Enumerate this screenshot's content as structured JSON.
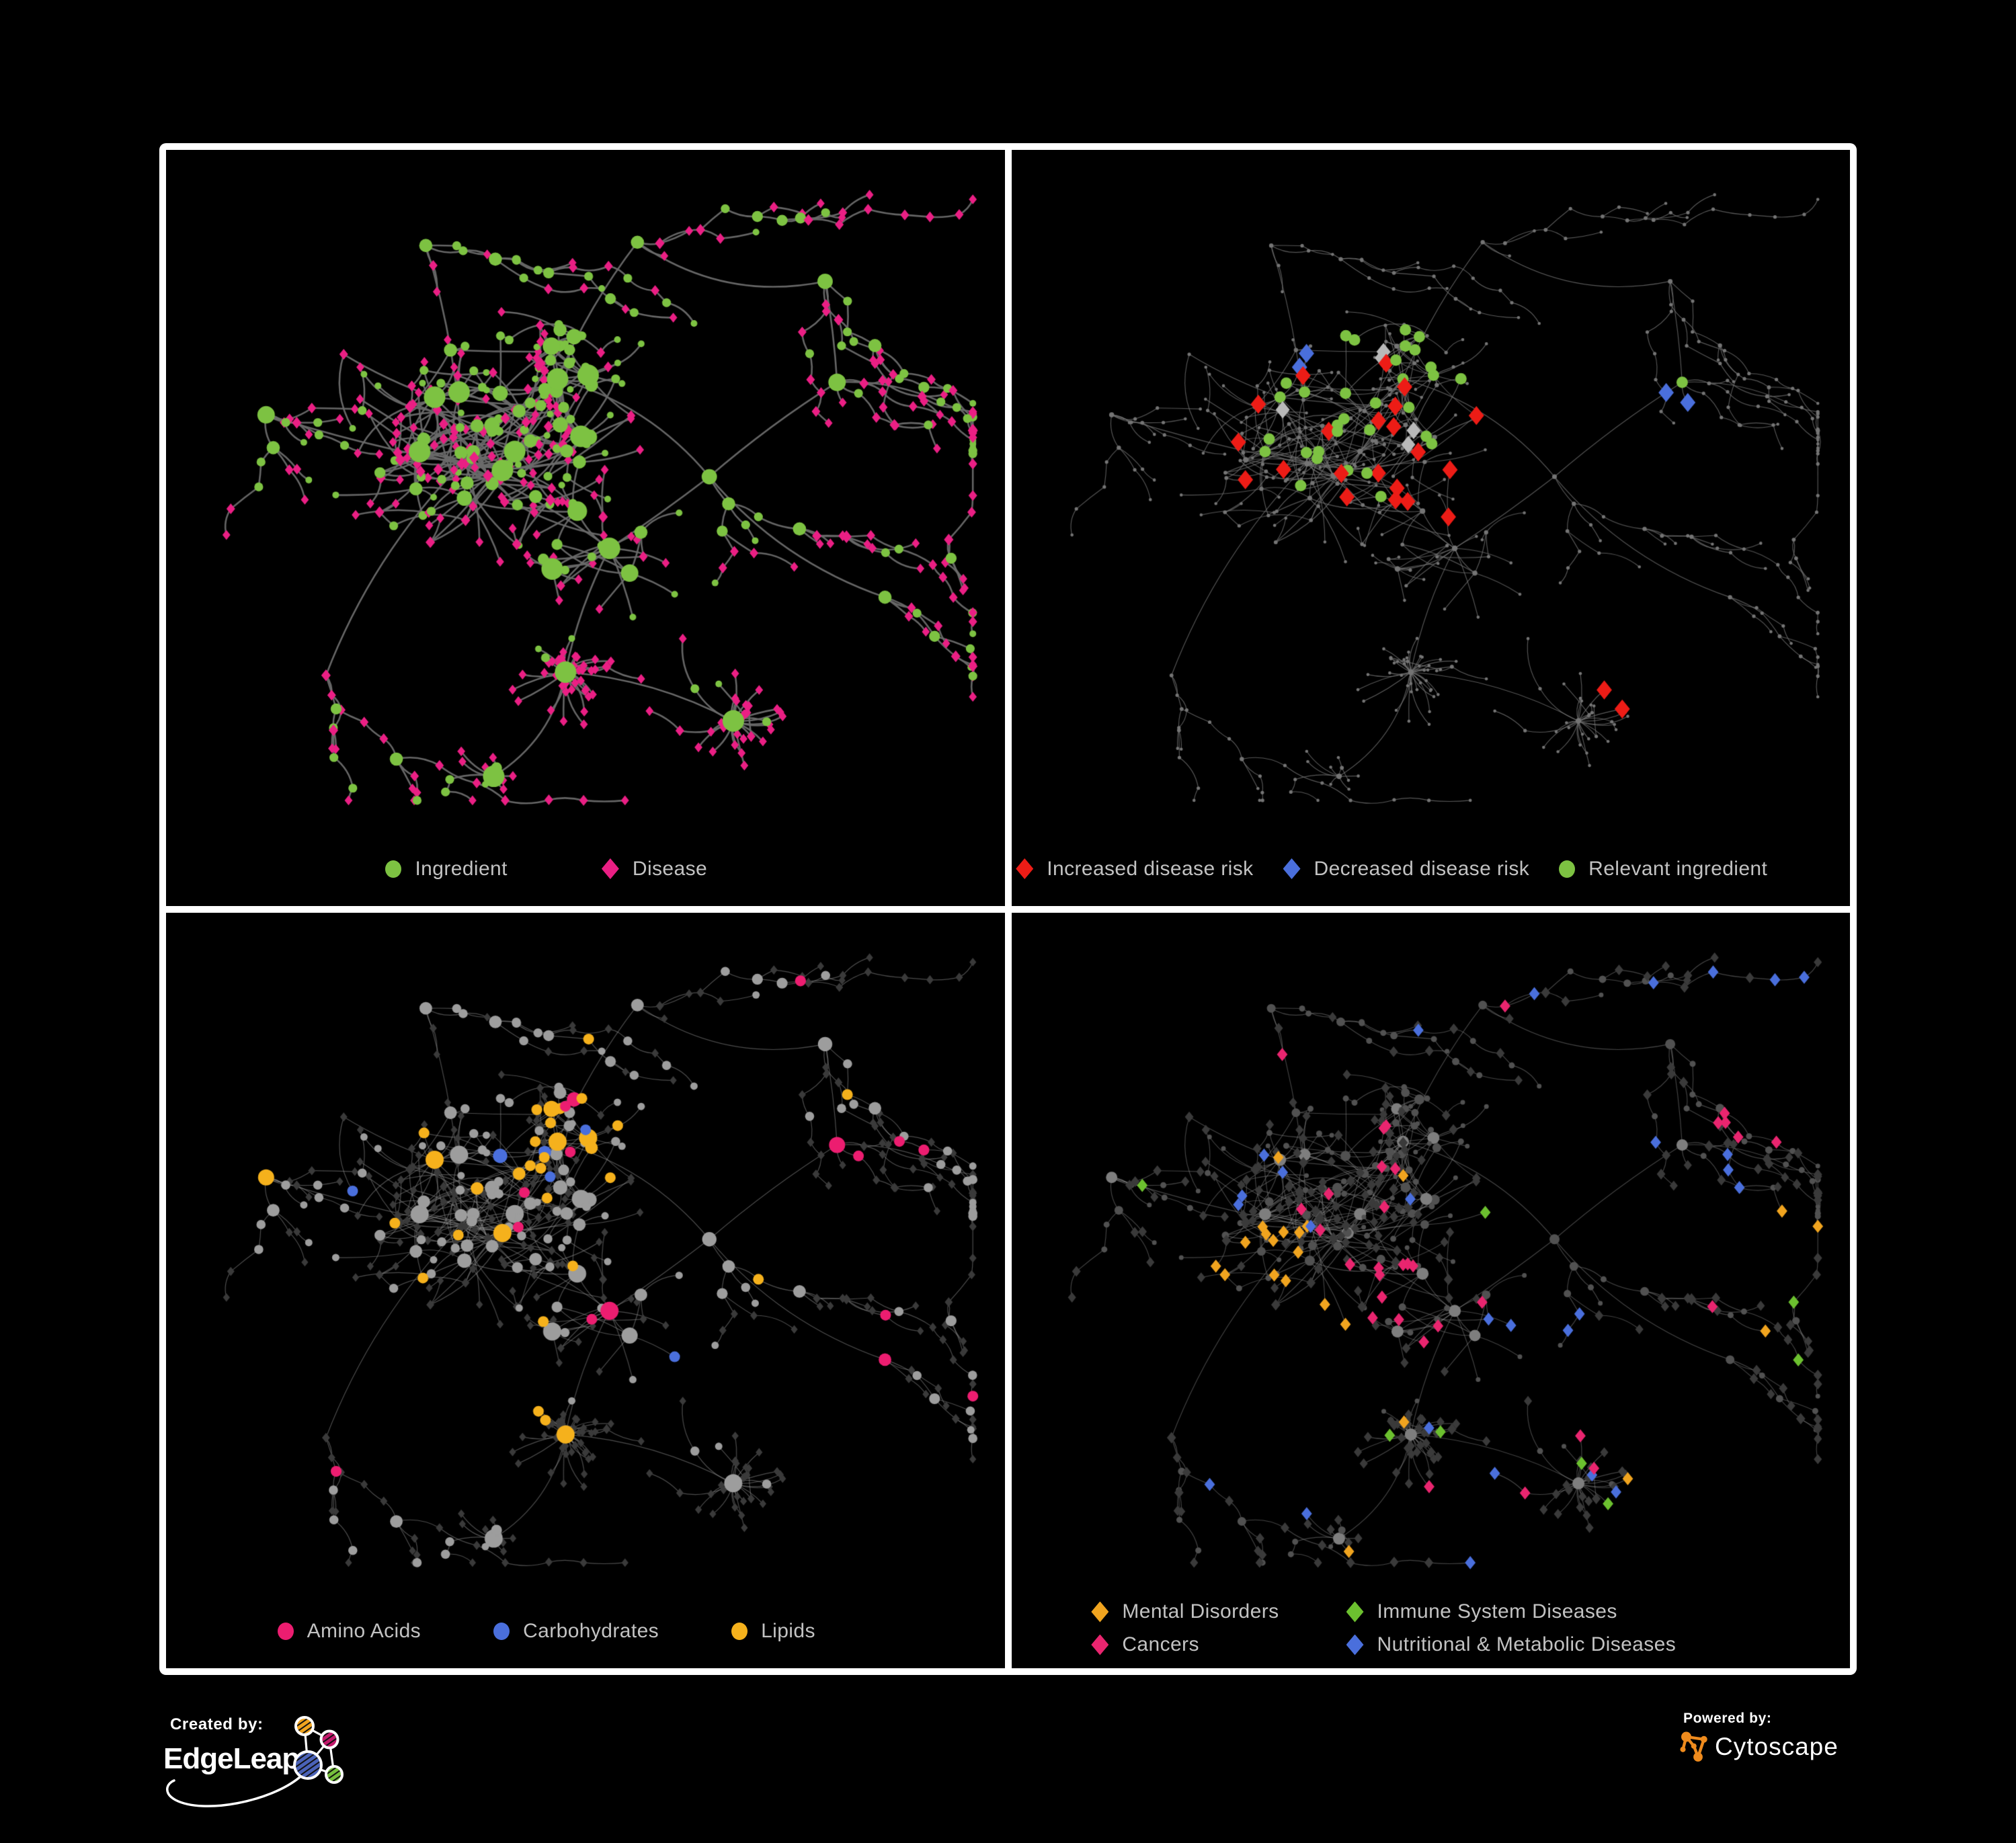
{
  "page": {
    "background": "#000000",
    "frame": "#ffffff"
  },
  "panels": [
    {
      "id": "ingredient-disease",
      "legend": [
        {
          "label": "Ingredient",
          "shape": "circle",
          "color": "#7dc242"
        },
        {
          "label": "Disease",
          "shape": "diamond",
          "color": "#ea1f84"
        }
      ]
    },
    {
      "id": "disease-risk",
      "legend": [
        {
          "label": "Increased disease risk",
          "shape": "diamond",
          "color": "#ed1c16"
        },
        {
          "label": "Decreased disease risk",
          "shape": "diamond",
          "color": "#4a6fdc"
        },
        {
          "label": "Relevant ingredient",
          "shape": "circle",
          "color": "#7dc242"
        }
      ]
    },
    {
      "id": "nutrient-class",
      "legend": [
        {
          "label": "Amino Acids",
          "shape": "circle",
          "color": "#ec1d70"
        },
        {
          "label": "Carbohydrates",
          "shape": "circle",
          "color": "#4a6fdc"
        },
        {
          "label": "Lipids",
          "shape": "circle",
          "color": "#f5b11c"
        }
      ]
    },
    {
      "id": "disease-category",
      "legend": [
        {
          "label": "Mental Disorders",
          "shape": "diamond",
          "color": "#f0a41f"
        },
        {
          "label": "Immune System Diseases",
          "shape": "diamond",
          "color": "#6cc02f"
        },
        {
          "label": "Cancers",
          "shape": "diamond",
          "color": "#e9256f"
        },
        {
          "label": "Nutritional & Metabolic Diseases",
          "shape": "diamond",
          "color": "#4a6fdc"
        }
      ]
    }
  ],
  "network_colors": {
    "edge_strong": "#6a6a6a",
    "edge_faint": "#979797",
    "dim_node": "#747474",
    "dark_diamond": "#3a3a3a",
    "dim_circle": "#515151",
    "hub_gray": "#7e7e7e",
    "gray_ingredient": "#9d9d9d",
    "neutral_highlight": "#b9b9b9"
  },
  "footer": {
    "created_by": "Created by:",
    "edgeleap": "EdgeLeap",
    "powered_by": "Powered by:",
    "cytoscape": "Cytoscape"
  }
}
